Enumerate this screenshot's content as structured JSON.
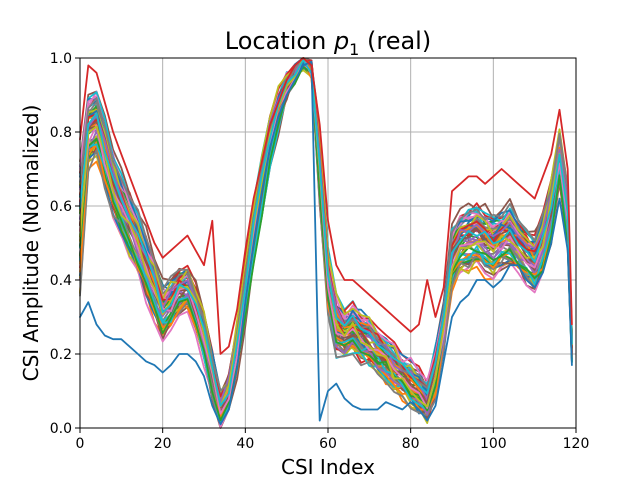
{
  "chart_data": {
    "type": "line",
    "title_prefix": "Location ",
    "title_var": "p",
    "title_sub": "1",
    "title_suffix": " (real)",
    "xlabel": "CSI Index",
    "ylabel": "CSI Amplitude (Normalized)",
    "xlim": [
      0,
      120
    ],
    "ylim": [
      0,
      1.0
    ],
    "xticks": [
      0,
      20,
      40,
      60,
      80,
      100,
      120
    ],
    "yticks": [
      0.0,
      0.2,
      0.4,
      0.6,
      0.8,
      1.0
    ],
    "xtick_labels": [
      "0",
      "20",
      "40",
      "60",
      "80",
      "100",
      "120"
    ],
    "ytick_labels": [
      "0.0",
      "0.2",
      "0.4",
      "0.6",
      "0.8",
      "1.0"
    ],
    "grid": true,
    "palette": [
      "#1f77b4",
      "#ff7f0e",
      "#2ca02c",
      "#d62728",
      "#9467bd",
      "#8c564b",
      "#e377c2",
      "#7f7f7f",
      "#bcbd22",
      "#17becf"
    ],
    "series_count": 60,
    "series_x": [
      0,
      2,
      4,
      6,
      8,
      10,
      12,
      14,
      16,
      18,
      20,
      22,
      24,
      26,
      28,
      30,
      32,
      34,
      36,
      38,
      40,
      42,
      44,
      46,
      48,
      50,
      52,
      54,
      56,
      58,
      60,
      62,
      64,
      66,
      68,
      70,
      72,
      74,
      76,
      78,
      80,
      82,
      84,
      86,
      88,
      90,
      92,
      94,
      96,
      98,
      100,
      102,
      104,
      106,
      108,
      110,
      112,
      114,
      116,
      118,
      119
    ],
    "mean_profile": [
      0.55,
      0.8,
      0.82,
      0.74,
      0.66,
      0.6,
      0.55,
      0.5,
      0.44,
      0.38,
      0.32,
      0.34,
      0.37,
      0.38,
      0.33,
      0.25,
      0.15,
      0.06,
      0.1,
      0.22,
      0.38,
      0.53,
      0.66,
      0.78,
      0.86,
      0.92,
      0.96,
      0.99,
      0.97,
      0.7,
      0.4,
      0.28,
      0.26,
      0.27,
      0.25,
      0.24,
      0.21,
      0.19,
      0.16,
      0.14,
      0.12,
      0.1,
      0.07,
      0.15,
      0.27,
      0.46,
      0.5,
      0.51,
      0.52,
      0.5,
      0.49,
      0.51,
      0.52,
      0.5,
      0.47,
      0.45,
      0.5,
      0.6,
      0.74,
      0.58,
      0.22
    ],
    "spread_profile": [
      0.22,
      0.12,
      0.11,
      0.11,
      0.11,
      0.1,
      0.1,
      0.1,
      0.1,
      0.1,
      0.09,
      0.08,
      0.07,
      0.07,
      0.07,
      0.08,
      0.08,
      0.05,
      0.06,
      0.08,
      0.1,
      0.1,
      0.09,
      0.08,
      0.06,
      0.04,
      0.02,
      0.01,
      0.02,
      0.12,
      0.1,
      0.09,
      0.08,
      0.08,
      0.08,
      0.08,
      0.08,
      0.08,
      0.08,
      0.07,
      0.07,
      0.07,
      0.06,
      0.08,
      0.08,
      0.1,
      0.1,
      0.1,
      0.1,
      0.1,
      0.1,
      0.1,
      0.1,
      0.09,
      0.09,
      0.09,
      0.1,
      0.1,
      0.09,
      0.11,
      0.04
    ],
    "outlier_low": [
      0.3,
      0.34,
      0.28,
      0.25,
      0.24,
      0.24,
      0.22,
      0.2,
      0.18,
      0.17,
      0.15,
      0.17,
      0.2,
      0.2,
      0.18,
      0.14,
      0.06,
      0.01,
      0.05,
      0.16,
      0.34,
      0.5,
      0.64,
      0.76,
      0.84,
      0.9,
      0.94,
      0.98,
      0.99,
      0.02,
      0.1,
      0.12,
      0.08,
      0.06,
      0.05,
      0.05,
      0.05,
      0.07,
      0.06,
      0.05,
      0.07,
      0.05,
      0.02,
      0.06,
      0.18,
      0.3,
      0.34,
      0.36,
      0.4,
      0.4,
      0.38,
      0.4,
      0.44,
      0.44,
      0.4,
      0.38,
      0.42,
      0.5,
      0.62,
      0.48,
      0.17
    ],
    "outlier_high": [
      0.78,
      0.98,
      0.96,
      0.88,
      0.8,
      0.74,
      0.68,
      0.62,
      0.56,
      0.5,
      0.46,
      0.48,
      0.5,
      0.52,
      0.48,
      0.44,
      0.56,
      0.2,
      0.22,
      0.32,
      0.48,
      0.62,
      0.72,
      0.82,
      0.88,
      0.94,
      0.98,
      1.0,
      0.98,
      0.82,
      0.56,
      0.44,
      0.4,
      0.4,
      0.38,
      0.36,
      0.34,
      0.32,
      0.3,
      0.28,
      0.26,
      0.28,
      0.4,
      0.3,
      0.38,
      0.64,
      0.66,
      0.68,
      0.68,
      0.66,
      0.68,
      0.7,
      0.68,
      0.66,
      0.64,
      0.62,
      0.68,
      0.74,
      0.86,
      0.7,
      0.28
    ]
  }
}
